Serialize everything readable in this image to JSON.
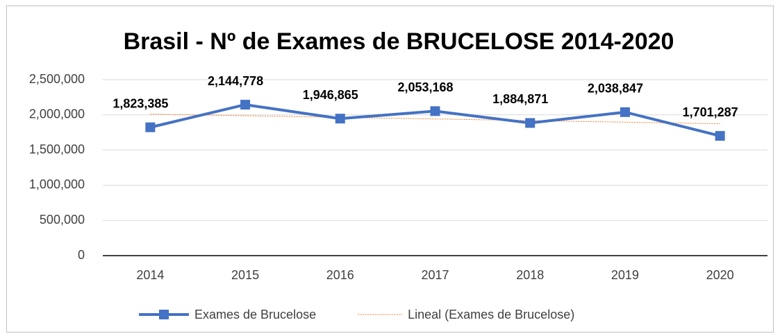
{
  "chart_data": {
    "type": "line",
    "title": "Brasil - Nº de Exames de BRUCELOSE 2014-2020",
    "categories": [
      "2014",
      "2015",
      "2016",
      "2017",
      "2018",
      "2019",
      "2020"
    ],
    "series": [
      {
        "name": "Exames de Brucelose",
        "color": "#4472c4",
        "marker": "square",
        "values": [
          1823385,
          2144778,
          1946865,
          2053168,
          1884871,
          2038847,
          1701287
        ],
        "value_labels": [
          "1,823,385",
          "2,144,778",
          "1,946,865",
          "2,053,168",
          "1,884,871",
          "2,038,847",
          "1,701,287"
        ]
      },
      {
        "name": "Lineal (Exames de Brucelose)",
        "color": "#ed7d31",
        "style": "dotted",
        "values": [
          2010473,
          1987611,
          1964748,
          1941886,
          1919023,
          1896161,
          1873298
        ]
      }
    ],
    "ylim": [
      0,
      2500000
    ],
    "yticks": [
      0,
      {
        "value": 500000,
        "label": "500,000"
      },
      {
        "value": 1000000,
        "label": "1,000,000"
      },
      {
        "value": 1500000,
        "label": "1,500,000"
      },
      {
        "value": 2000000,
        "label": "2,000,000"
      },
      {
        "value": 2500000,
        "label": "2,500,000"
      }
    ],
    "grid": true,
    "legend": "bottom"
  }
}
